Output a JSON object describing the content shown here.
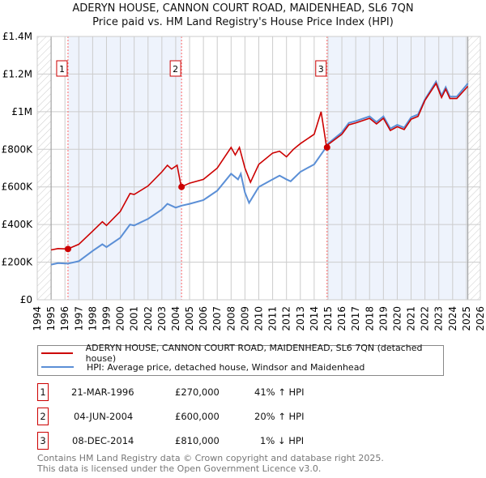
{
  "chart_data": {
    "type": "line",
    "title": "ADERYN HOUSE, CANNON COURT ROAD, MAIDENHEAD, SL6 7QN",
    "subtitle": "Price paid vs. HM Land Registry's House Price Index (HPI)",
    "xlim": [
      1994,
      2026
    ],
    "ylim": [
      0,
      1400000
    ],
    "x_ticks": [
      "1994",
      "1995",
      "1996",
      "1997",
      "1998",
      "1999",
      "2000",
      "2001",
      "2002",
      "2003",
      "2004",
      "2005",
      "2006",
      "2007",
      "2008",
      "2009",
      "2010",
      "2011",
      "2012",
      "2013",
      "2014",
      "2015",
      "2016",
      "2017",
      "2018",
      "2019",
      "2020",
      "2021",
      "2022",
      "2023",
      "2024",
      "2025",
      "2026"
    ],
    "y_ticks": [
      {
        "v": 0,
        "label": "£0"
      },
      {
        "v": 200000,
        "label": "£200K"
      },
      {
        "v": 400000,
        "label": "£400K"
      },
      {
        "v": 600000,
        "label": "£600K"
      },
      {
        "v": 800000,
        "label": "£800K"
      },
      {
        "v": 1000000,
        "label": "£1M"
      },
      {
        "v": 1200000,
        "label": "£1.2M"
      },
      {
        "v": 1400000,
        "label": "£1.4M"
      }
    ],
    "series": [
      {
        "name": "ADERYN HOUSE, CANNON COURT ROAD, MAIDENHEAD, SL6 7QN (detached house)",
        "color": "#cc0000",
        "x": [
          1995,
          1995.5,
          1996.2,
          1997,
          1998,
          1998.7,
          1999,
          2000,
          2000.7,
          2001,
          2002,
          2003,
          2003.4,
          2003.7,
          2004.1,
          2004.4,
          2005,
          2006,
          2007,
          2008,
          2008.3,
          2008.6,
          2009,
          2009.4,
          2010,
          2011,
          2011.5,
          2012,
          2012.5,
          2013,
          2014,
          2014.5,
          2014.9,
          2015,
          2016,
          2016.5,
          2017,
          2018,
          2018.5,
          2019,
          2019.5,
          2020,
          2020.5,
          2021,
          2021.5,
          2022,
          2022.8,
          2023.2,
          2023.5,
          2023.8,
          2024.3,
          2025.1
        ],
        "y": [
          265000,
          272000,
          270000,
          295000,
          365000,
          415000,
          395000,
          470000,
          565000,
          560000,
          605000,
          680000,
          715000,
          695000,
          715000,
          600000,
          620000,
          640000,
          700000,
          810000,
          770000,
          810000,
          700000,
          625000,
          720000,
          780000,
          790000,
          760000,
          800000,
          830000,
          880000,
          1000000,
          810000,
          825000,
          880000,
          930000,
          940000,
          965000,
          935000,
          965000,
          900000,
          920000,
          905000,
          960000,
          975000,
          1060000,
          1150000,
          1075000,
          1120000,
          1070000,
          1070000,
          1135000
        ]
      },
      {
        "name": "HPI: Average price, detached house, Windsor and Maidenhead",
        "color": "#5b8fd6",
        "x": [
          1995,
          1995.5,
          1996.2,
          1997,
          1998,
          1998.7,
          1999,
          2000,
          2000.7,
          2001,
          2002,
          2003,
          2003.4,
          2004,
          2004.4,
          2005,
          2006,
          2007,
          2008,
          2008.5,
          2008.7,
          2009,
          2009.3,
          2010,
          2011,
          2011.5,
          2012,
          2012.3,
          2013,
          2014,
          2014.9,
          2015,
          2016,
          2016.5,
          2017,
          2018,
          2018.5,
          2019,
          2019.5,
          2020,
          2020.5,
          2021,
          2021.5,
          2022,
          2022.8,
          2023.2,
          2023.5,
          2023.8,
          2024.3,
          2025.1
        ],
        "y": [
          187000,
          195000,
          192000,
          205000,
          260000,
          295000,
          280000,
          330000,
          400000,
          395000,
          430000,
          480000,
          510000,
          490000,
          500000,
          510000,
          530000,
          580000,
          670000,
          640000,
          670000,
          570000,
          515000,
          600000,
          640000,
          660000,
          640000,
          630000,
          680000,
          720000,
          815000,
          830000,
          890000,
          940000,
          950000,
          975000,
          945000,
          975000,
          910000,
          930000,
          915000,
          970000,
          985000,
          1065000,
          1160000,
          1085000,
          1130000,
          1080000,
          1080000,
          1150000
        ]
      }
    ],
    "sales": [
      {
        "id": "1",
        "x": 1996.22,
        "y": 270000,
        "date": "21-MAR-1996",
        "price": "£270,000",
        "hpi": "41% ↑ HPI"
      },
      {
        "id": "2",
        "x": 2004.42,
        "y": 600000,
        "date": "04-JUN-2004",
        "price": "£600,000",
        "hpi": "20% ↑ HPI"
      },
      {
        "id": "3",
        "x": 2014.93,
        "y": 810000,
        "date": "08-DEC-2014",
        "price": "£810,000",
        "hpi": "1% ↓ HPI"
      }
    ],
    "shaded_ranges": [
      [
        1996.22,
        2004.42
      ],
      [
        2014.93,
        2025.1
      ]
    ],
    "data_range": [
      1995,
      2025.1
    ],
    "grid": true,
    "legend_position": "bottom"
  },
  "footer": {
    "line1": "Contains HM Land Registry data © Crown copyright and database right 2025.",
    "line2": "This data is licensed under the Open Government Licence v3.0."
  }
}
